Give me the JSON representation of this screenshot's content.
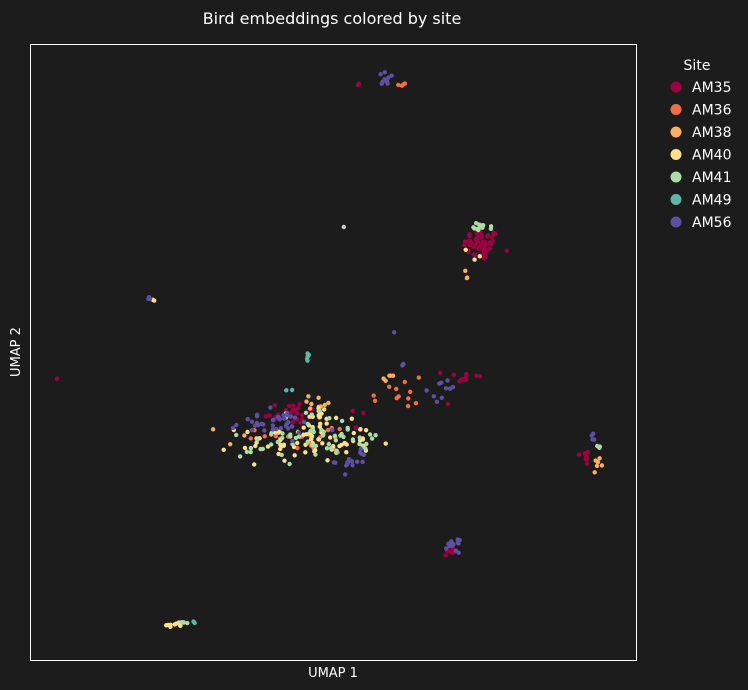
{
  "chart_data": {
    "type": "scatter",
    "title": "Bird embeddings colored by site",
    "xlabel": "UMAP 1",
    "ylabel": "UMAP 2",
    "xlim": [
      0,
      100
    ],
    "ylim": [
      0,
      100
    ],
    "ticks_shown": false,
    "grid": false,
    "legend": {
      "title": "Site",
      "placement": "right-outside-top"
    },
    "series": [
      {
        "name": "AM35",
        "color": "#9e0142",
        "clusters": [
          {
            "x": 74.5,
            "y": 67.5,
            "sx": 1.5,
            "sy": 1.3,
            "n": 55
          },
          {
            "x": 42.5,
            "y": 40.2,
            "sx": 2.8,
            "sy": 0.9,
            "n": 28
          },
          {
            "x": 71.5,
            "y": 46.0,
            "sx": 1.5,
            "sy": 0.6,
            "n": 12
          },
          {
            "x": 91.8,
            "y": 33.0,
            "sx": 0.3,
            "sy": 0.9,
            "n": 9
          },
          {
            "x": 69.2,
            "y": 17.7,
            "sx": 0.6,
            "sy": 0.5,
            "n": 8
          },
          {
            "x": 58.5,
            "y": 41.3,
            "sx": 4.5,
            "sy": 2.0,
            "n": 5
          },
          {
            "x": 54.0,
            "y": 93.5,
            "sx": 0.3,
            "sy": 0.3,
            "n": 2
          },
          {
            "x": 4.3,
            "y": 45.8,
            "sx": 0.1,
            "sy": 0.1,
            "n": 1
          }
        ]
      },
      {
        "name": "AM36",
        "color": "#f46d43",
        "clusters": [
          {
            "x": 60.5,
            "y": 42.5,
            "sx": 2.5,
            "sy": 2.5,
            "n": 12
          },
          {
            "x": 48.0,
            "y": 36.0,
            "sx": 3.5,
            "sy": 1.3,
            "n": 18
          },
          {
            "x": 61.5,
            "y": 93.6,
            "sx": 0.5,
            "sy": 0.2,
            "n": 4
          },
          {
            "x": 39.0,
            "y": 36.5,
            "sx": 2.5,
            "sy": 1.0,
            "n": 6
          }
        ]
      },
      {
        "name": "AM38",
        "color": "#fdae61",
        "clusters": [
          {
            "x": 59.0,
            "y": 45.8,
            "sx": 0.8,
            "sy": 0.3,
            "n": 5
          },
          {
            "x": 47.5,
            "y": 41.5,
            "sx": 1.2,
            "sy": 1.5,
            "n": 10
          },
          {
            "x": 93.8,
            "y": 32.2,
            "sx": 0.4,
            "sy": 0.4,
            "n": 6
          },
          {
            "x": 72.0,
            "y": 62.5,
            "sx": 0.3,
            "sy": 0.6,
            "n": 3
          },
          {
            "x": 37.5,
            "y": 36.5,
            "sx": 3.0,
            "sy": 1.0,
            "n": 6
          }
        ]
      },
      {
        "name": "AM40",
        "color": "#fee08b",
        "clusters": [
          {
            "x": 45.5,
            "y": 35.5,
            "sx": 5.5,
            "sy": 1.6,
            "n": 70
          },
          {
            "x": 47.8,
            "y": 40.0,
            "sx": 1.0,
            "sy": 1.5,
            "n": 10
          },
          {
            "x": 24.0,
            "y": 5.7,
            "sx": 0.8,
            "sy": 0.4,
            "n": 10
          },
          {
            "x": 20.5,
            "y": 58.6,
            "sx": 0.2,
            "sy": 0.1,
            "n": 2
          },
          {
            "x": 74.0,
            "y": 66.0,
            "sx": 1.0,
            "sy": 1.5,
            "n": 3
          }
        ]
      },
      {
        "name": "AM41",
        "color": "#abdda4",
        "clusters": [
          {
            "x": 46.5,
            "y": 36.5,
            "sx": 5.0,
            "sy": 2.0,
            "n": 45
          },
          {
            "x": 74.8,
            "y": 70.5,
            "sx": 0.8,
            "sy": 0.3,
            "n": 14
          },
          {
            "x": 54.5,
            "y": 35.5,
            "sx": 0.8,
            "sy": 0.6,
            "n": 8
          },
          {
            "x": 93.5,
            "y": 35.0,
            "sx": 0.3,
            "sy": 0.4,
            "n": 4
          },
          {
            "x": 25.5,
            "y": 6.0,
            "sx": 0.4,
            "sy": 0.1,
            "n": 3
          },
          {
            "x": 37.0,
            "y": 34.0,
            "sx": 1.5,
            "sy": 0.5,
            "n": 6
          }
        ]
      },
      {
        "name": "AM49",
        "color": "#5fb5a7",
        "clusters": [
          {
            "x": 45.7,
            "y": 49.2,
            "sx": 0.2,
            "sy": 0.5,
            "n": 5
          },
          {
            "x": 42.5,
            "y": 43.5,
            "sx": 0.5,
            "sy": 0.3,
            "n": 2
          },
          {
            "x": 26.5,
            "y": 6.1,
            "sx": 0.3,
            "sy": 0.1,
            "n": 2
          }
        ]
      },
      {
        "name": "AM56",
        "color": "#5e4fa2",
        "clusters": [
          {
            "x": 40.0,
            "y": 38.5,
            "sx": 3.5,
            "sy": 1.0,
            "n": 38
          },
          {
            "x": 53.0,
            "y": 32.5,
            "sx": 1.3,
            "sy": 1.0,
            "n": 16
          },
          {
            "x": 68.5,
            "y": 44.0,
            "sx": 1.5,
            "sy": 0.8,
            "n": 10
          },
          {
            "x": 69.8,
            "y": 18.5,
            "sx": 0.5,
            "sy": 0.5,
            "n": 14
          },
          {
            "x": 58.8,
            "y": 94.5,
            "sx": 0.8,
            "sy": 0.5,
            "n": 9
          },
          {
            "x": 93.0,
            "y": 36.2,
            "sx": 0.2,
            "sy": 0.4,
            "n": 4
          },
          {
            "x": 19.5,
            "y": 58.9,
            "sx": 0.2,
            "sy": 0.2,
            "n": 3
          },
          {
            "x": 60.1,
            "y": 53.4,
            "sx": 0.1,
            "sy": 0.1,
            "n": 1
          },
          {
            "x": 61.5,
            "y": 48.0,
            "sx": 0.2,
            "sy": 0.4,
            "n": 2
          }
        ]
      }
    ],
    "unlabeled_points": [
      {
        "x": 51.7,
        "y": 70.4,
        "color": "#cccccc"
      }
    ]
  }
}
